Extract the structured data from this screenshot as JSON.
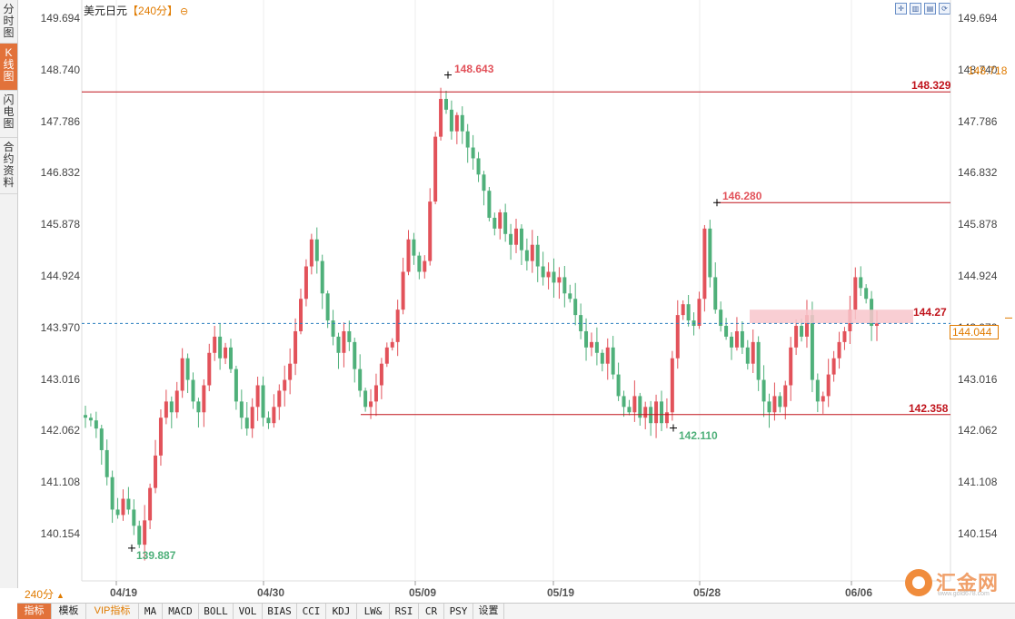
{
  "side_tabs": [
    {
      "label": "分时图"
    },
    {
      "label": "K线图"
    },
    {
      "label": "闪电图"
    },
    {
      "label": "合约资料"
    }
  ],
  "header": {
    "symbol": "美元日元",
    "period": "【240分】",
    "toggle_icon": "minus-circle-icon"
  },
  "toolbar_icons": [
    "crosshair-icon",
    "chart-style-icon",
    "bar-style-icon",
    "refresh-icon"
  ],
  "colors": {
    "up": "#e2525a",
    "down": "#4fb07a",
    "accent": "#e07b00",
    "price_line": "#2a7fbf"
  },
  "y_axis_ticks": [
    "149.694",
    "148.740",
    "147.786",
    "146.832",
    "145.878",
    "144.924",
    "143.970",
    "143.016",
    "142.062",
    "141.108",
    "140.154"
  ],
  "x_axis_ticks": [
    "04/19",
    "04/30",
    "05/09",
    "05/19",
    "05/28",
    "06/06"
  ],
  "annotations": {
    "high1": "148.643",
    "high2": "146.280",
    "low1": "139.887",
    "low2": "142.110",
    "resistance": "148.329",
    "support": "142.358",
    "zone": "144.27",
    "current_price": "144.044",
    "right_tag": "148.718"
  },
  "period_selector": {
    "label": "240分",
    "icon": "triangle-up-icon"
  },
  "indicator_bar": [
    "指标",
    "模板",
    "VIP指标",
    "MA",
    "MACD",
    "BOLL",
    "VOL",
    "BIAS",
    "CCI",
    "KDJ",
    "LW&",
    "RSI",
    "CR",
    "PSY",
    "设置"
  ],
  "watermark": {
    "name": "汇金网",
    "url": "www.gold678.com"
  },
  "chart_data": {
    "type": "candlestick",
    "title": "美元日元【240分】",
    "ylim": [
      139.2,
      150.0
    ],
    "x_labels": [
      "04/19",
      "04/30",
      "05/09",
      "05/19",
      "05/28",
      "06/06"
    ],
    "horizontal_lines": [
      148.329,
      142.358
    ],
    "current_price": 144.044,
    "zone": [
      144.05,
      144.3
    ],
    "close_path": [
      142.3,
      142.25,
      142.1,
      141.7,
      141.2,
      140.6,
      140.5,
      140.8,
      140.6,
      140.3,
      139.95,
      140.4,
      141.0,
      141.6,
      142.3,
      142.6,
      142.4,
      142.8,
      143.4,
      143.0,
      142.6,
      142.4,
      142.9,
      143.5,
      143.8,
      143.4,
      143.6,
      143.2,
      142.6,
      142.3,
      142.1,
      142.5,
      142.9,
      142.3,
      142.2,
      142.5,
      142.8,
      143.0,
      143.3,
      143.9,
      144.5,
      145.1,
      145.6,
      145.2,
      144.6,
      144.1,
      143.8,
      143.5,
      143.9,
      143.7,
      143.2,
      142.8,
      142.5,
      142.6,
      142.9,
      143.3,
      143.6,
      143.7,
      144.3,
      145.0,
      145.6,
      145.3,
      145.0,
      145.2,
      146.3,
      147.5,
      148.2,
      148.0,
      147.6,
      147.9,
      147.6,
      147.3,
      147.1,
      146.8,
      146.5,
      146.0,
      145.8,
      146.1,
      145.7,
      145.5,
      145.8,
      145.4,
      145.2,
      145.5,
      145.1,
      144.9,
      145.0,
      144.8,
      144.9,
      144.6,
      144.5,
      144.2,
      143.9,
      143.6,
      143.7,
      143.5,
      143.3,
      143.6,
      143.1,
      142.7,
      142.5,
      142.4,
      142.7,
      142.3,
      142.5,
      142.2,
      142.6,
      142.2,
      142.4,
      143.4,
      144.2,
      144.4,
      144.1,
      144.0,
      144.5,
      145.8,
      144.9,
      144.3,
      144.0,
      143.8,
      143.6,
      143.9,
      143.6,
      143.3,
      143.7,
      143.0,
      142.6,
      142.4,
      142.7,
      142.5,
      142.9,
      143.6,
      144.0,
      143.8,
      144.2,
      143.0,
      142.6,
      142.7,
      143.1,
      143.4,
      143.7,
      143.9,
      144.3,
      144.9,
      144.7,
      144.5,
      144.0,
      144.044
    ]
  }
}
